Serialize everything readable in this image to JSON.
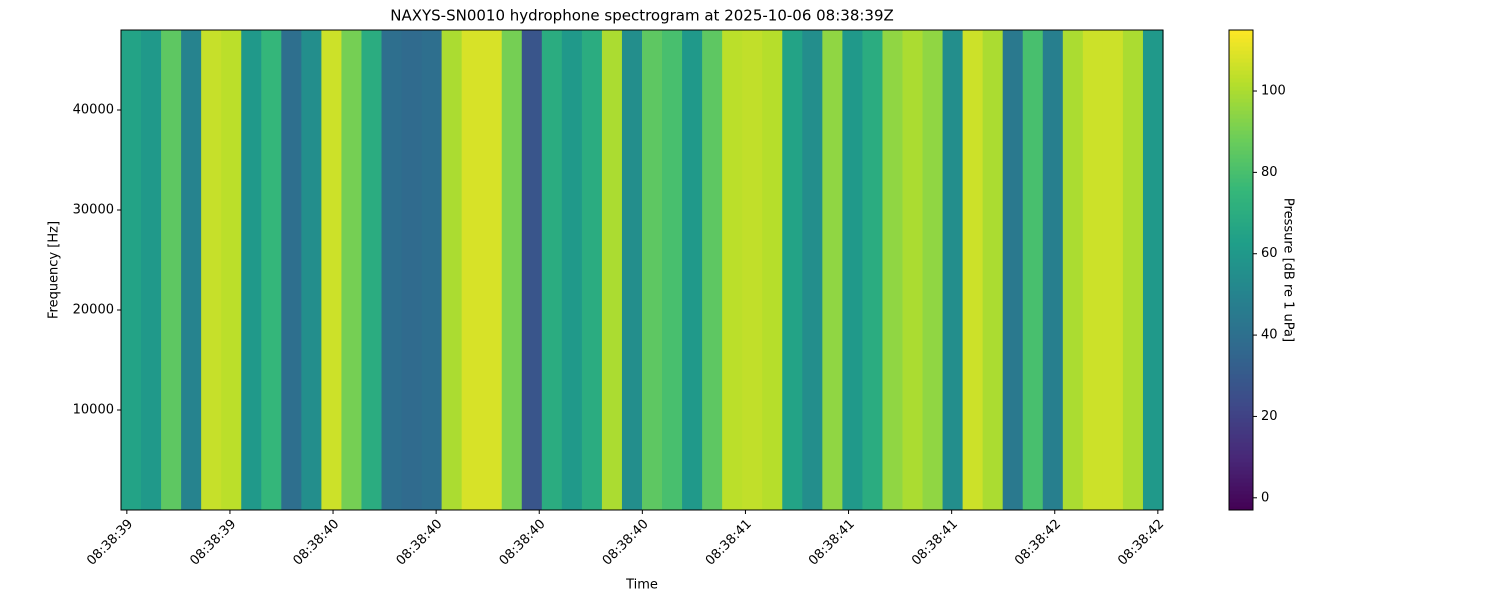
{
  "chart_data": {
    "type": "heatmap",
    "title": "NAXYS-SN0010 hydrophone spectrogram at 2025-10-06 08:38:39Z",
    "x_label": "Time",
    "y_label": "Frequency [Hz]",
    "colorbar_label": "Pressure [dB re 1 uPa]",
    "colormap": "viridis",
    "xlim": [
      -0.017,
      3.015
    ],
    "xticks": [
      {
        "value": 0.0,
        "label": "08:38:39"
      },
      {
        "value": 0.3,
        "label": "08:38:39"
      },
      {
        "value": 0.6,
        "label": "08:38:40"
      },
      {
        "value": 0.9,
        "label": "08:38:40"
      },
      {
        "value": 1.2,
        "label": "08:38:40"
      },
      {
        "value": 1.5,
        "label": "08:38:40"
      },
      {
        "value": 1.8,
        "label": "08:38:41"
      },
      {
        "value": 2.1,
        "label": "08:38:41"
      },
      {
        "value": 2.4,
        "label": "08:38:41"
      },
      {
        "value": 2.7,
        "label": "08:38:42"
      },
      {
        "value": 3.0,
        "label": "08:38:42"
      }
    ],
    "ylim": [
      0,
      48000
    ],
    "yticks": [
      10000,
      20000,
      30000,
      40000
    ],
    "clim": [
      -3,
      115
    ],
    "cticks": [
      0,
      20,
      40,
      60,
      80,
      100
    ],
    "values": [
      65,
      60,
      85,
      50,
      105,
      103,
      60,
      75,
      40,
      55,
      106,
      90,
      70,
      40,
      38,
      40,
      100,
      108,
      108,
      90,
      28,
      70,
      60,
      70,
      100,
      55,
      85,
      80,
      60,
      85,
      103,
      104,
      102,
      65,
      55,
      95,
      60,
      70,
      95,
      100,
      95,
      55,
      106,
      100,
      45,
      80,
      48,
      100,
      106,
      106,
      100,
      60
    ]
  }
}
